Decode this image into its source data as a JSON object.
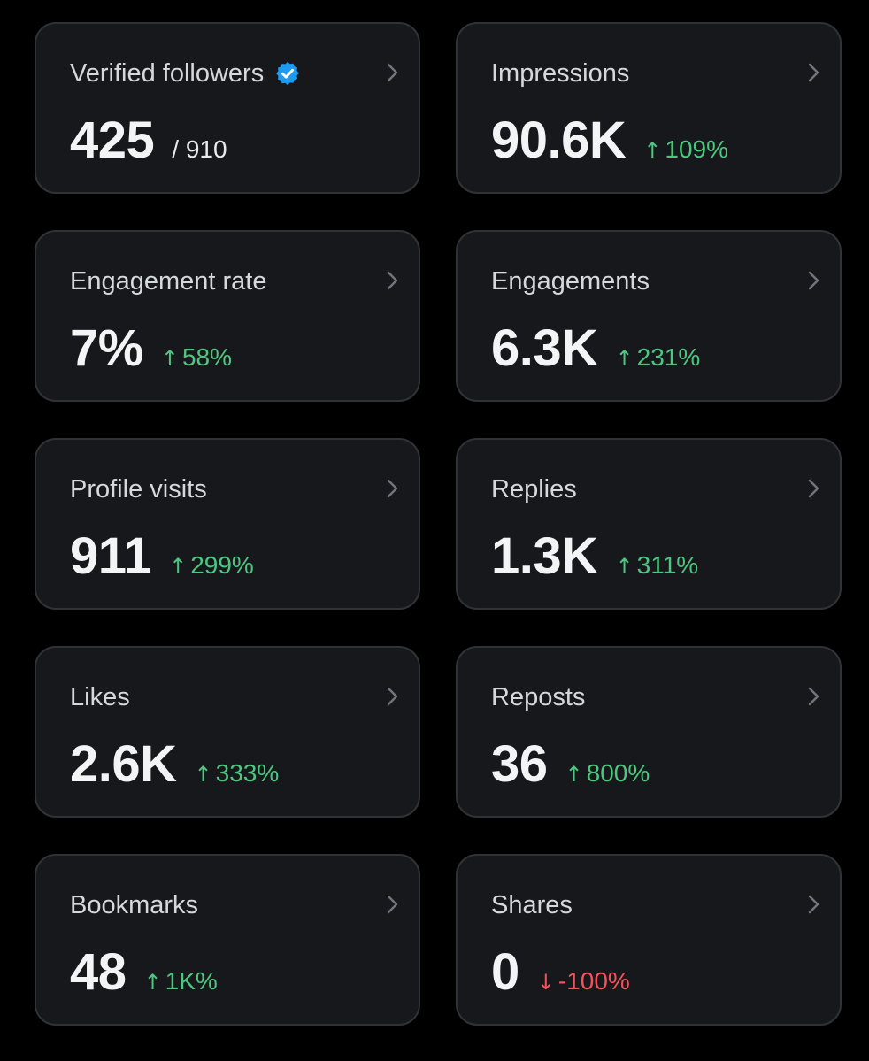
{
  "colors": {
    "background": "#000000",
    "card_background": "#16181c",
    "card_border": "#2f3336",
    "title": "#d6d9db",
    "value": "#f3f4f5",
    "increase": "#4ec67f",
    "decrease": "#f4535b",
    "verified_badge": "#1d9bf0"
  },
  "cards": [
    {
      "title": "Verified followers",
      "value": "425",
      "total": "/ 910",
      "icon": "verified-badge-icon"
    },
    {
      "title": "Impressions",
      "value": "90.6K",
      "change": "109%",
      "direction": "up"
    },
    {
      "title": "Engagement rate",
      "value": "7%",
      "change": "58%",
      "direction": "up"
    },
    {
      "title": "Engagements",
      "value": "6.3K",
      "change": "231%",
      "direction": "up"
    },
    {
      "title": "Profile visits",
      "value": "911",
      "change": "299%",
      "direction": "up"
    },
    {
      "title": "Replies",
      "value": "1.3K",
      "change": "311%",
      "direction": "up"
    },
    {
      "title": "Likes",
      "value": "2.6K",
      "change": "333%",
      "direction": "up"
    },
    {
      "title": "Reposts",
      "value": "36",
      "change": "800%",
      "direction": "up"
    },
    {
      "title": "Bookmarks",
      "value": "48",
      "change": "1K%",
      "direction": "up"
    },
    {
      "title": "Shares",
      "value": "0",
      "change": "-100%",
      "direction": "down"
    }
  ],
  "arrows": {
    "up": "↑",
    "down": "↓"
  }
}
